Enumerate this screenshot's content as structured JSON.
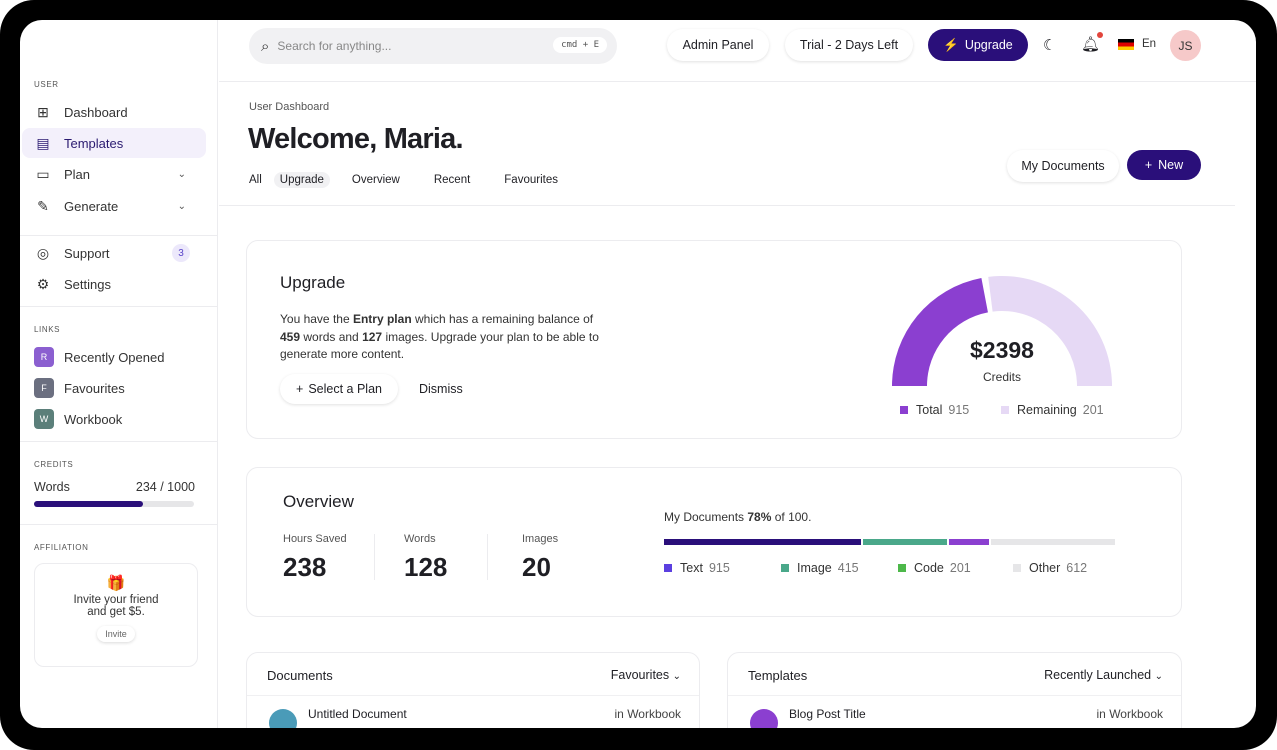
{
  "sidebar": {
    "user_label": "USER",
    "items": [
      {
        "label": "Dashboard"
      },
      {
        "label": "Templates"
      },
      {
        "label": "Plan"
      },
      {
        "label": "Generate"
      },
      {
        "label": "Support",
        "badge": "3"
      },
      {
        "label": "Settings"
      }
    ],
    "links_label": "LINKS",
    "links": [
      {
        "letter": "R",
        "label": "Recently Opened",
        "color": "#8b5fd0"
      },
      {
        "letter": "F",
        "label": "Favourites",
        "color": "#6b6f80"
      },
      {
        "letter": "W",
        "label": "Workbook",
        "color": "#5b7f7a"
      }
    ],
    "credits_label": "CREDITS",
    "credits": {
      "name": "Words",
      "value": "234 / 1000"
    },
    "affiliation_label": "AFFILIATION",
    "affiliation": {
      "text1": "Invite your friend",
      "text2": "and get $5.",
      "button": "Invite"
    }
  },
  "header": {
    "search_placeholder": "Search for anything...",
    "shortcut": "cmd + E",
    "admin": "Admin Panel",
    "trial": "Trial - 2 Days Left",
    "upgrade": "Upgrade",
    "lang": "En",
    "avatar": "JS"
  },
  "page": {
    "breadcrumb": "User Dashboard",
    "title": "Welcome, Maria.",
    "tabs": [
      "All",
      "Upgrade",
      "Overview",
      "Recent",
      "Favourites"
    ],
    "my_documents": "My Documents",
    "new": "New"
  },
  "upgrade": {
    "title": "Upgrade",
    "t1": "You have the ",
    "plan": "Entry plan",
    "t2": " which has a remaining balance of",
    "words": "459",
    "t3": " words and ",
    "images": "127",
    "t4": " images. Upgrade your plan to be able to",
    "t5": "generate more content.",
    "select": "Select a Plan",
    "dismiss": "Dismiss",
    "amount": "$2398",
    "amount_label": "Credits",
    "total_label": "Total",
    "total": "915",
    "remaining_label": "Remaining",
    "remaining": "201",
    "gauge_fill": 0.45,
    "colors": {
      "total": "#8b3fd0",
      "remaining": "#e6d9f5"
    }
  },
  "overview": {
    "title": "Overview",
    "stats": [
      {
        "label": "Hours Saved",
        "value": "238"
      },
      {
        "label": "Words",
        "value": "128"
      },
      {
        "label": "Images",
        "value": "20"
      }
    ],
    "docs_pre": "My Documents ",
    "docs_pct": "78%",
    "docs_post": " of 100.",
    "legend": [
      {
        "label": "Text",
        "value": "915",
        "color": "#2a0f7a"
      },
      {
        "label": "Image",
        "value": "415",
        "color": "#4aa88a"
      },
      {
        "label": "Code",
        "value": "201",
        "color": "#4db84a"
      },
      {
        "label": "Other",
        "value": "612",
        "color": "#e6e6e8"
      }
    ]
  },
  "documents": {
    "title": "Documents",
    "filter": "Favourites",
    "row": {
      "name": "Untitled Document",
      "loc": "in Workbook"
    }
  },
  "templates": {
    "title": "Templates",
    "filter": "Recently Launched",
    "row": {
      "name": "Blog Post Title",
      "loc": "in Workbook"
    }
  }
}
